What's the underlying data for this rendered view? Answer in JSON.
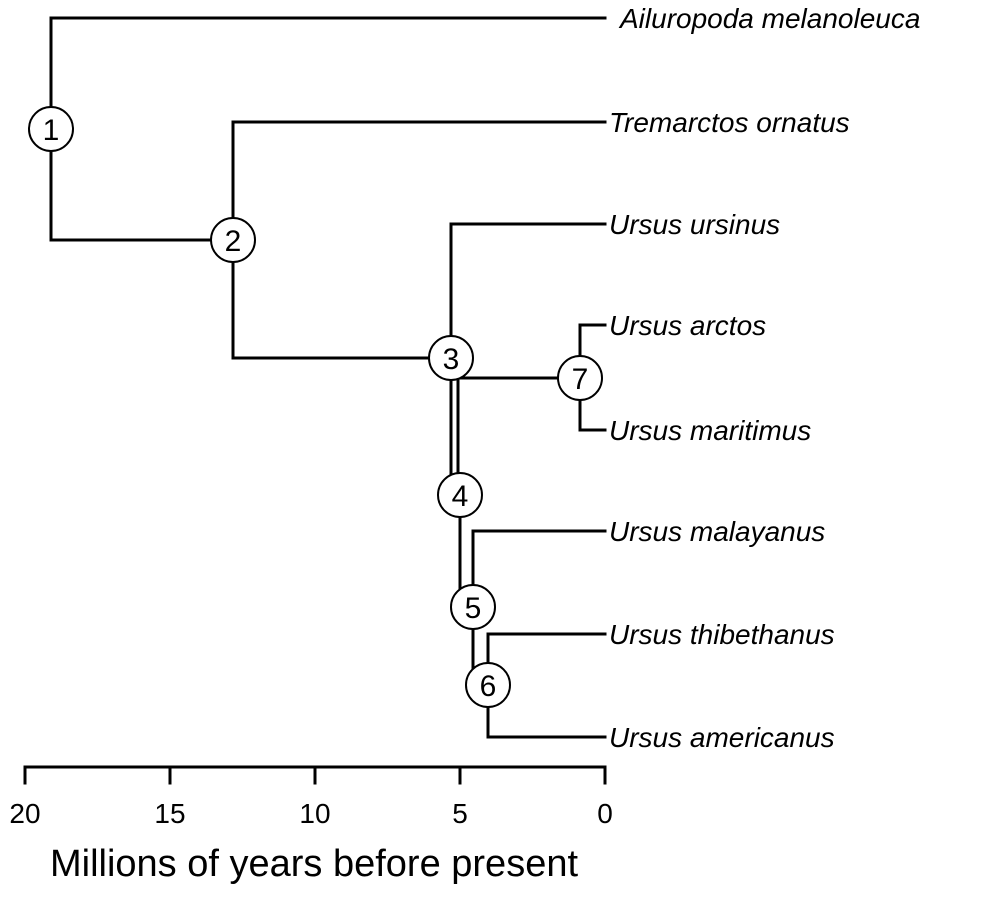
{
  "tree": {
    "taxa": [
      {
        "name": "Ailuropoda melanoleuca"
      },
      {
        "name": "Tremarctos ornatus"
      },
      {
        "name": "Ursus ursinus"
      },
      {
        "name": "Ursus arctos"
      },
      {
        "name": "Ursus maritimus"
      },
      {
        "name": "Ursus malayanus"
      },
      {
        "name": "Ursus thibethanus"
      },
      {
        "name": "Ursus americanus"
      }
    ],
    "nodes": [
      {
        "label": "1",
        "age_mya": 19
      },
      {
        "label": "2",
        "age_mya": 12.8
      },
      {
        "label": "3",
        "age_mya": 5.3
      },
      {
        "label": "4",
        "age_mya": 5.1
      },
      {
        "label": "5",
        "age_mya": 4.6
      },
      {
        "label": "6",
        "age_mya": 4.0
      },
      {
        "label": "7",
        "age_mya": 0.9
      }
    ]
  },
  "axis": {
    "title": "Millions of years before present",
    "min": 0,
    "max": 20,
    "direction": "reversed",
    "ticks": [
      {
        "value": 20,
        "label": "20"
      },
      {
        "value": 15,
        "label": "15"
      },
      {
        "value": 10,
        "label": "10"
      },
      {
        "value": 5,
        "label": "5"
      },
      {
        "value": 0,
        "label": "0"
      }
    ]
  }
}
